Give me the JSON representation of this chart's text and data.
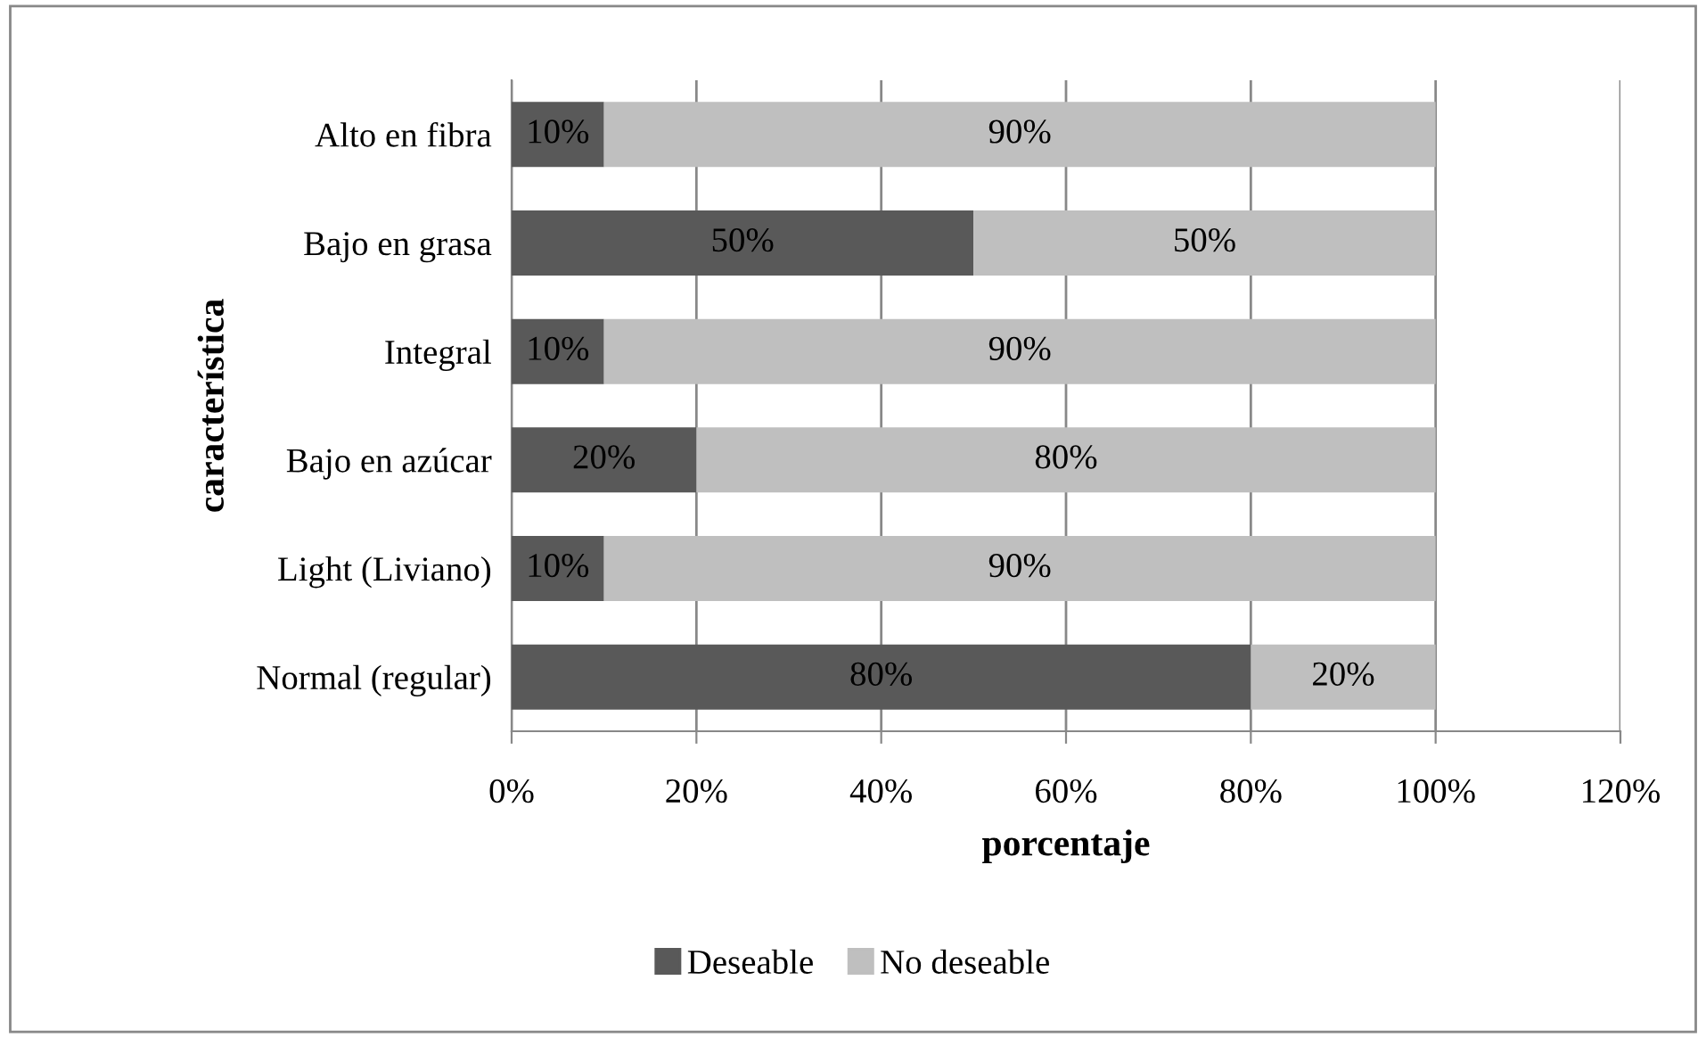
{
  "chart_data": {
    "type": "bar",
    "orientation": "horizontal",
    "stacked": true,
    "categories": [
      "Alto en fibra",
      "Bajo en grasa",
      "Integral",
      "Bajo en azúcar",
      "Light (Liviano)",
      "Normal (regular)"
    ],
    "series": [
      {
        "name": "Deseable",
        "color": "#595959",
        "values": [
          10,
          50,
          10,
          20,
          10,
          80
        ],
        "value_labels": [
          "10%",
          "50%",
          "10%",
          "20%",
          "10%",
          "80%"
        ]
      },
      {
        "name": "No deseable",
        "color": "#bfbfbf",
        "values": [
          90,
          50,
          90,
          80,
          90,
          20
        ],
        "value_labels": [
          "90%",
          "50%",
          "90%",
          "80%",
          "90%",
          "20%"
        ]
      }
    ],
    "xlabel": "porcentaje",
    "ylabel": "característica",
    "xlim": [
      0,
      120
    ],
    "xticks": [
      {
        "value": 0,
        "label": "0%"
      },
      {
        "value": 20,
        "label": "20%"
      },
      {
        "value": 40,
        "label": "40%"
      },
      {
        "value": 60,
        "label": "60%"
      },
      {
        "value": 80,
        "label": "80%"
      },
      {
        "value": 100,
        "label": "100%"
      },
      {
        "value": 120,
        "label": "120%"
      }
    ],
    "grid": "x",
    "legend": "bottom"
  }
}
